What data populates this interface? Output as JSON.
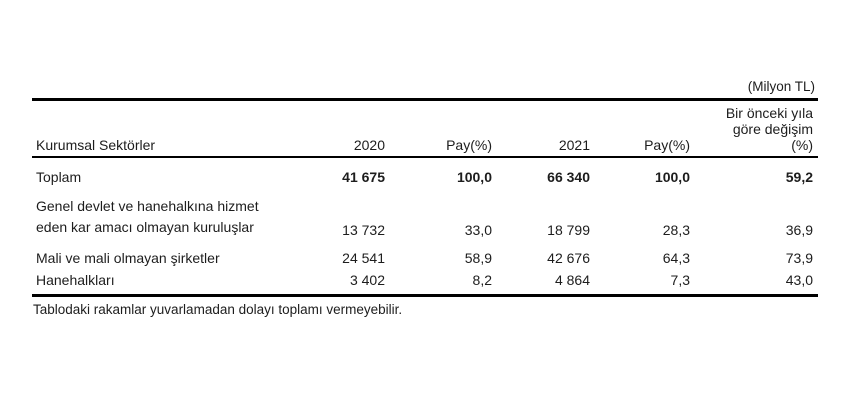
{
  "unit_label": "(Milyon TL)",
  "header": {
    "sector_col": "Kurumsal Sektörler",
    "year1": "2020",
    "share1": "Pay(%)",
    "year2": "2021",
    "share2": "Pay(%)",
    "change_line1": "Bir önceki yıla",
    "change_line2": "göre değişim",
    "change_line3": "(%)"
  },
  "rows": [
    {
      "label": "Toplam",
      "v2020": "41 675",
      "pay2020": "100,0",
      "v2021": "66 340",
      "pay2021": "100,0",
      "change": "59,2",
      "emphasis": true
    },
    {
      "label_line1": "Genel devlet ve hanehalkına hizmet",
      "label_line2": "eden kar amacı olmayan kuruluşlar",
      "v2020": "13 732",
      "pay2020": "33,0",
      "v2021": "18 799",
      "pay2021": "28,3",
      "change": "36,9",
      "emphasis": false
    },
    {
      "label": "Mali ve mali olmayan şirketler",
      "v2020": "24 541",
      "pay2020": "58,9",
      "v2021": "42 676",
      "pay2021": "64,3",
      "change": "73,9",
      "emphasis": false
    },
    {
      "label": "Hanehalkları",
      "v2020": "3 402",
      "pay2020": "8,2",
      "v2021": "4 864",
      "pay2021": "7,3",
      "change": "43,0",
      "emphasis": false
    }
  ],
  "footnote": "Tablodaki rakamlar yuvarlamadan dolayı toplamı vermeyebilir.",
  "colors": {
    "text": "#1d1d1d",
    "rule_line": "#000000",
    "background": "#ffffff"
  }
}
